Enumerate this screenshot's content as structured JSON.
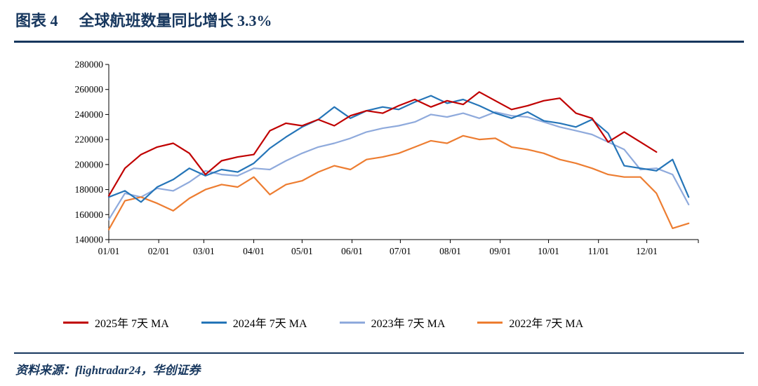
{
  "header": {
    "figure_label": "图表 4",
    "title": "全球航班数量同比增长 3.3%"
  },
  "footer": {
    "source": "资料来源：flightradar24，华创证券"
  },
  "colors": {
    "navy": "#17375E",
    "axis": "#000000",
    "series_2025": "#C00000",
    "series_2024": "#2575B8",
    "series_2023": "#8FAADC",
    "series_2022": "#ED7D31"
  },
  "chart_data": {
    "type": "line",
    "title": "全球航班数量同比增长 3.3%",
    "x_unit": "day_of_year",
    "x_max": 366,
    "ylim": [
      140000,
      280000
    ],
    "y_ticks": [
      140000,
      160000,
      180000,
      200000,
      220000,
      240000,
      260000,
      280000
    ],
    "x_tick_positions": [
      0,
      31,
      59,
      90,
      120,
      151,
      181,
      212,
      243,
      273,
      304,
      334
    ],
    "x_tick_labels": [
      "01/01",
      "02/01",
      "03/01",
      "04/01",
      "05/01",
      "06/01",
      "07/01",
      "08/01",
      "09/01",
      "10/01",
      "11/01",
      "12/01"
    ],
    "grid": false,
    "legend_position": "bottom",
    "x": [
      0,
      10,
      20,
      30,
      40,
      50,
      60,
      70,
      80,
      90,
      100,
      110,
      120,
      130,
      140,
      150,
      160,
      170,
      180,
      190,
      200,
      210,
      220,
      230,
      240,
      250,
      260,
      270,
      280,
      290,
      300,
      310,
      320,
      330,
      340,
      350,
      360
    ],
    "series": [
      {
        "name": "2025年 7天 MA",
        "color": "#C00000",
        "z": 4,
        "values": [
          175000,
          197000,
          208000,
          214000,
          217000,
          209000,
          192000,
          203000,
          206000,
          208000,
          227000,
          233000,
          231000,
          236000,
          231000,
          239000,
          243000,
          241000,
          247000,
          252000,
          246000,
          251000,
          248000,
          258000,
          251000,
          244000,
          247000,
          251000,
          253000,
          241000,
          237000,
          218000,
          226000,
          218000,
          210000,
          null,
          null
        ]
      },
      {
        "name": "2024年 7天 MA",
        "color": "#2575B8",
        "z": 3,
        "values": [
          174000,
          179000,
          170000,
          182000,
          188000,
          197000,
          191000,
          196000,
          194000,
          201000,
          213000,
          222000,
          230000,
          236000,
          246000,
          237000,
          243000,
          246000,
          244000,
          250000,
          255000,
          249000,
          252000,
          247000,
          241000,
          237000,
          242000,
          235000,
          233000,
          230000,
          236000,
          225000,
          199000,
          197000,
          195000,
          204000,
          174000
        ]
      },
      {
        "name": "2023年 7天 MA",
        "color": "#8FAADC",
        "z": 1,
        "values": [
          156000,
          177000,
          174000,
          181000,
          179000,
          186000,
          195000,
          192000,
          191000,
          197000,
          196000,
          203000,
          209000,
          214000,
          217000,
          221000,
          226000,
          229000,
          231000,
          234000,
          240000,
          238000,
          241000,
          237000,
          242000,
          239000,
          238000,
          234000,
          230000,
          227000,
          224000,
          218000,
          212000,
          196000,
          197000,
          192000,
          168000
        ]
      },
      {
        "name": "2022年 7天 MA",
        "color": "#ED7D31",
        "z": 2,
        "values": [
          148000,
          171000,
          174000,
          169000,
          163000,
          173000,
          180000,
          184000,
          182000,
          190000,
          176000,
          184000,
          187000,
          194000,
          199000,
          196000,
          204000,
          206000,
          209000,
          214000,
          219000,
          217000,
          223000,
          220000,
          221000,
          214000,
          212000,
          209000,
          204000,
          201000,
          197000,
          192000,
          190000,
          190000,
          177000,
          149000,
          153000
        ]
      }
    ]
  }
}
